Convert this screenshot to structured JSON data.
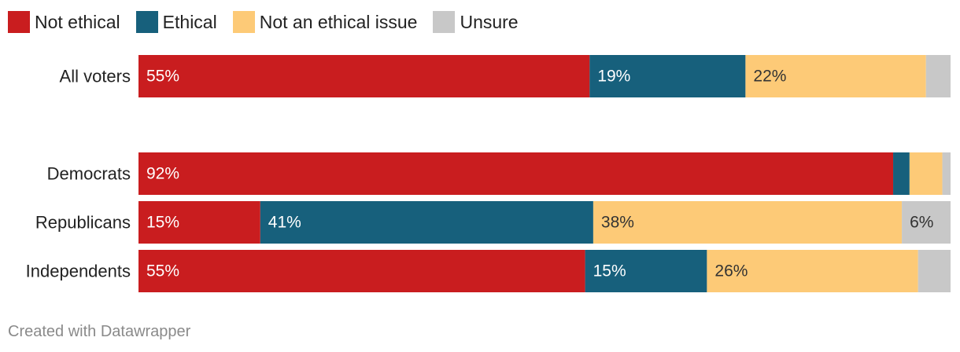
{
  "legend": [
    {
      "label": "Not ethical",
      "color": "#c91d1f"
    },
    {
      "label": "Ethical",
      "color": "#17607c"
    },
    {
      "label": "Not an ethical issue",
      "color": "#fdca77"
    },
    {
      "label": "Unsure",
      "color": "#c8c8c8"
    }
  ],
  "chart_data": {
    "type": "bar",
    "orientation": "horizontal",
    "stacked": true,
    "categories": [
      "All voters",
      "Democrats",
      "Republicans",
      "Independents"
    ],
    "series": [
      {
        "name": "Not ethical",
        "color": "#c91d1f",
        "values": [
          55,
          92,
          15,
          55
        ],
        "labels": [
          "55%",
          "92%",
          "15%",
          "55%"
        ],
        "label_color": "#ffffff"
      },
      {
        "name": "Ethical",
        "color": "#17607c",
        "values": [
          19,
          2,
          41,
          15
        ],
        "labels": [
          "19%",
          "",
          "41%",
          "15%"
        ],
        "label_color": "#ffffff"
      },
      {
        "name": "Not an ethical issue",
        "color": "#fdca77",
        "values": [
          22,
          4,
          38,
          26
        ],
        "labels": [
          "22%",
          "",
          "38%",
          "26%"
        ],
        "label_color": "#333333"
      },
      {
        "name": "Unsure",
        "color": "#c8c8c8",
        "values": [
          3,
          1,
          6,
          4
        ],
        "labels": [
          "",
          "",
          "6%",
          ""
        ],
        "label_color": "#333333"
      }
    ],
    "xlim": [
      0,
      100
    ]
  },
  "footer": "Created with Datawrapper"
}
